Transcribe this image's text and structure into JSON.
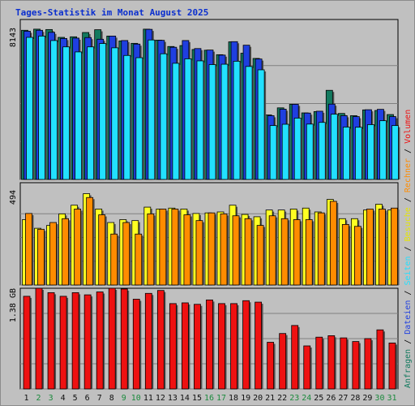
{
  "title": "Tages-Statistik im Monat August 2025",
  "colors": {
    "anfragen": "#137a5f",
    "dateien": "#1f3fe0",
    "seiten": "#22e0ff",
    "besuche": "#ffff22",
    "rechner": "#ff8c00",
    "volumen": "#ee1111",
    "weekend": "#1b8a3d",
    "weekday": "#101010",
    "panel_bg": "#c0c0c0",
    "grid": "#808080"
  },
  "chart_data": [
    {
      "type": "bar",
      "panel": "top",
      "categories": [
        "1",
        "2",
        "3",
        "4",
        "5",
        "6",
        "7",
        "8",
        "9",
        "10",
        "11",
        "12",
        "13",
        "14",
        "15",
        "16",
        "17",
        "18",
        "19",
        "20",
        "21",
        "22",
        "23",
        "24",
        "25",
        "26",
        "27",
        "28",
        "29",
        "30",
        "31"
      ],
      "weekend_days": [
        "2",
        "3",
        "9",
        "10",
        "16",
        "17",
        "23",
        "24",
        "30",
        "31"
      ],
      "y_tick_label": "8143",
      "ylim": [
        0,
        8143
      ],
      "series": [
        {
          "name": "Anfragen",
          "values": [
            8000,
            8060,
            8040,
            7620,
            7650,
            7880,
            8030,
            7690,
            7430,
            7300,
            8060,
            7470,
            7130,
            7180,
            6970,
            6930,
            6690,
            7380,
            6770,
            6490,
            3460,
            3840,
            4030,
            3570,
            3640,
            4780,
            3540,
            3420,
            3730,
            3700,
            3480
          ]
        },
        {
          "name": "Dateien",
          "values": [
            7950,
            8000,
            7890,
            7560,
            7580,
            7610,
            7520,
            7690,
            7450,
            7260,
            8050,
            7460,
            7090,
            7450,
            7020,
            6940,
            6670,
            7390,
            7200,
            6460,
            3420,
            3770,
            4030,
            3560,
            3660,
            4040,
            3420,
            3370,
            3740,
            3760,
            3370
          ]
        },
        {
          "name": "Seiten",
          "values": [
            7620,
            7690,
            7450,
            7110,
            6840,
            7110,
            7290,
            7060,
            6650,
            6530,
            7480,
            6740,
            6230,
            6470,
            6360,
            6160,
            6180,
            6340,
            6060,
            5880,
            2890,
            2960,
            3290,
            2970,
            3060,
            3500,
            2810,
            2800,
            2940,
            3150,
            2890
          ]
        }
      ]
    },
    {
      "type": "bar",
      "panel": "middle",
      "categories": [
        "1",
        "2",
        "3",
        "4",
        "5",
        "6",
        "7",
        "8",
        "9",
        "10",
        "11",
        "12",
        "13",
        "14",
        "15",
        "16",
        "17",
        "18",
        "19",
        "20",
        "21",
        "22",
        "23",
        "24",
        "25",
        "26",
        "27",
        "28",
        "29",
        "30",
        "31"
      ],
      "y_tick_label": "494",
      "ylim": [
        0,
        494
      ],
      "series": [
        {
          "name": "Besuche",
          "values": [
            340,
            295,
            310,
            370,
            415,
            475,
            395,
            325,
            340,
            335,
            405,
            395,
            400,
            395,
            372,
            375,
            380,
            415,
            367,
            355,
            390,
            390,
            395,
            400,
            380,
            445,
            345,
            345,
            390,
            420,
            390
          ]
        },
        {
          "name": "Rechner",
          "values": [
            372,
            290,
            325,
            345,
            395,
            455,
            365,
            265,
            325,
            265,
            370,
            395,
            395,
            365,
            335,
            375,
            370,
            360,
            345,
            310,
            360,
            345,
            340,
            340,
            375,
            435,
            315,
            305,
            395,
            395,
            400
          ]
        }
      ]
    },
    {
      "type": "bar",
      "panel": "bottom",
      "categories": [
        "1",
        "2",
        "3",
        "4",
        "5",
        "6",
        "7",
        "8",
        "9",
        "10",
        "11",
        "12",
        "13",
        "14",
        "15",
        "16",
        "17",
        "18",
        "19",
        "20",
        "21",
        "22",
        "23",
        "24",
        "25",
        "26",
        "27",
        "28",
        "29",
        "30",
        "31"
      ],
      "y_tick_label": "1.38 GB",
      "ylim": [
        0,
        1.38
      ],
      "series": [
        {
          "name": "Volumen",
          "values": [
            1.27,
            1.38,
            1.32,
            1.27,
            1.32,
            1.29,
            1.33,
            1.38,
            1.37,
            1.23,
            1.31,
            1.35,
            1.17,
            1.18,
            1.16,
            1.22,
            1.17,
            1.17,
            1.21,
            1.19,
            0.64,
            0.76,
            0.87,
            0.59,
            0.71,
            0.73,
            0.7,
            0.65,
            0.69,
            0.81,
            0.63
          ]
        }
      ]
    }
  ],
  "legend_right": [
    {
      "text": "Anfragen",
      "color": "#137a5f"
    },
    {
      "text": " / ",
      "color": "#000000"
    },
    {
      "text": "Dateien",
      "color": "#1f3fe0"
    },
    {
      "text": " / ",
      "color": "#000000"
    },
    {
      "text": "Seiten",
      "color": "#22e0ff"
    },
    {
      "text": " / ",
      "color": "#000000"
    },
    {
      "text": "Besuche",
      "color": "#e6e600"
    },
    {
      "text": " / ",
      "color": "#000000"
    },
    {
      "text": "Rechner",
      "color": "#ff8c00"
    },
    {
      "text": " / ",
      "color": "#000000"
    },
    {
      "text": "Volumen",
      "color": "#ee1111"
    }
  ]
}
